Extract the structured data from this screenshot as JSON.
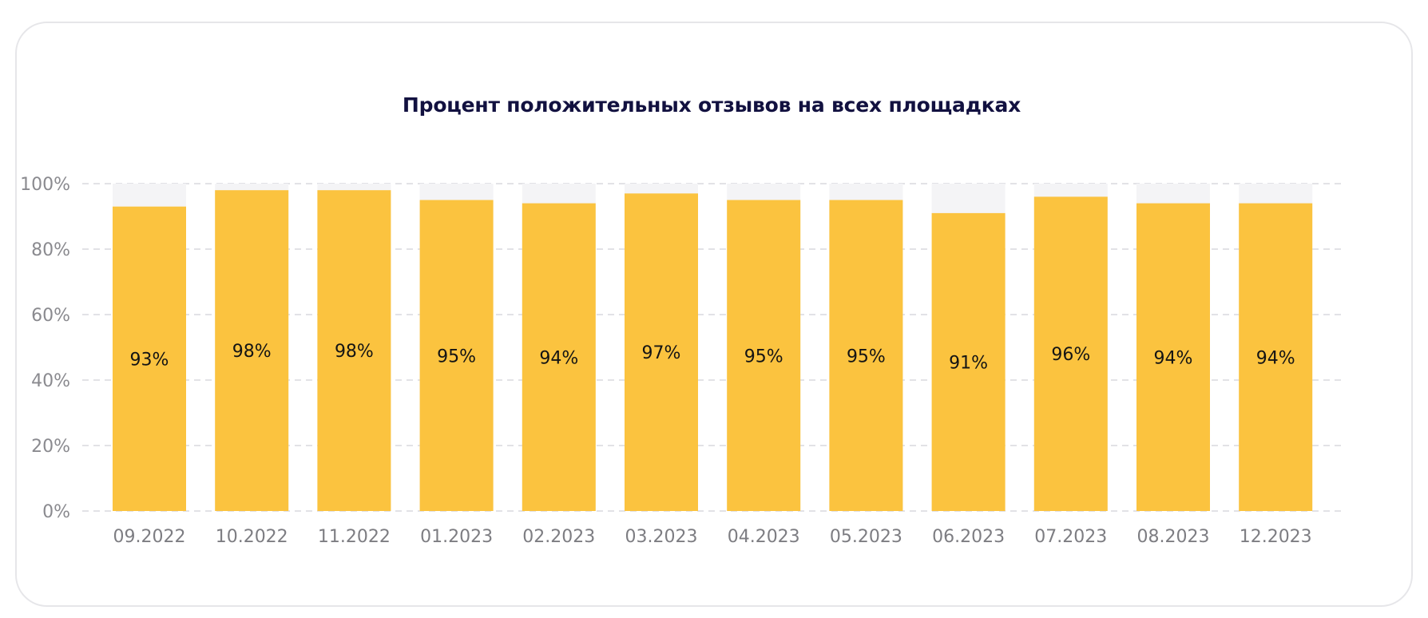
{
  "chart_data": {
    "type": "bar",
    "title": "Процент положительных отзывов на всех площадках",
    "categories": [
      "09.2022",
      "10.2022",
      "11.2022",
      "01.2023",
      "02.2023",
      "03.2023",
      "04.2023",
      "05.2023",
      "06.2023",
      "07.2023",
      "08.2023",
      "12.2023"
    ],
    "values": [
      93,
      98,
      98,
      95,
      94,
      97,
      95,
      95,
      91,
      96,
      94,
      94
    ],
    "value_labels": [
      "93%",
      "98%",
      "98%",
      "95%",
      "94%",
      "97%",
      "95%",
      "95%",
      "91%",
      "96%",
      "94%",
      "94%"
    ],
    "y_ticks": [
      0,
      20,
      40,
      60,
      80,
      100
    ],
    "y_tick_labels": [
      "0%",
      "20%",
      "40%",
      "60%",
      "80%",
      "100%"
    ],
    "ylim": [
      0,
      100
    ],
    "grid": true,
    "legend": "none",
    "colors": {
      "bar": "#fbc33f",
      "bar_track": "#f4f4f6",
      "grid": "#d9d9de",
      "title": "#121140"
    }
  }
}
